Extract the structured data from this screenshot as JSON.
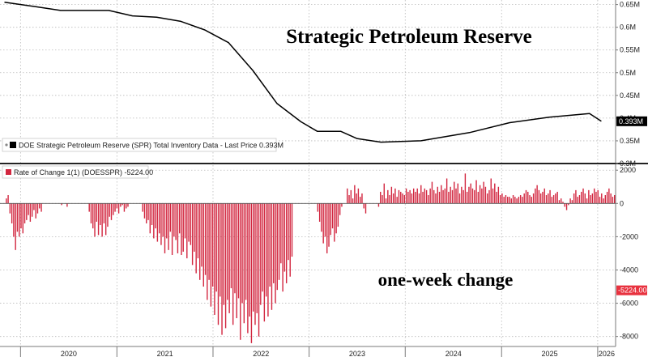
{
  "chart_data": [
    {
      "type": "line",
      "title": "Strategic Petroleum Reserve",
      "legend": "DOE Strategic Petroleum Reserve (SPR) Total Inventory Data - Last Price 0.393M",
      "last_value_label": "0.393M",
      "y_unit": "M",
      "ylim": [
        0.3,
        0.66
      ],
      "y_ticks": [
        0.3,
        0.35,
        0.4,
        0.45,
        0.5,
        0.55,
        0.6,
        0.65
      ],
      "y_tick_labels": [
        "0.3M",
        "0.35M",
        "0.4M",
        "0.45M",
        "0.5M",
        "0.55M",
        "0.6M",
        "0.65M"
      ],
      "grid": true,
      "line_color": "#000000",
      "x": [
        "2019-11-01",
        "2020-03-01",
        "2020-06-01",
        "2020-12-01",
        "2021-03-01",
        "2021-06-01",
        "2021-09-01",
        "2021-12-01",
        "2022-03-01",
        "2022-06-01",
        "2022-09-01",
        "2022-12-01",
        "2023-02-01",
        "2023-05-01",
        "2023-07-01",
        "2023-10-01",
        "2024-03-01",
        "2024-09-01",
        "2025-02-01",
        "2025-07-01",
        "2025-12-01",
        "2026-01-15"
      ],
      "y": [
        0.655,
        0.645,
        0.637,
        0.637,
        0.625,
        0.622,
        0.613,
        0.594,
        0.566,
        0.505,
        0.432,
        0.392,
        0.371,
        0.371,
        0.355,
        0.347,
        0.35,
        0.368,
        0.39,
        0.402,
        0.41,
        0.393
      ]
    },
    {
      "type": "bar",
      "title": "one-week change",
      "legend": "Rate of Change 1(1) (DOESSPR) -5224.00",
      "last_value_label": "-5224.00",
      "ylim": [
        -8600,
        2400
      ],
      "y_ticks": [
        2000,
        0,
        -2000,
        -4000,
        -6000,
        -8000
      ],
      "y_tick_labels": [
        "2000",
        "0",
        "-2000",
        "-4000",
        "-6000",
        "-8000"
      ],
      "grid": true,
      "bar_color": "#d2263f",
      "x_start": "2019-11-01",
      "frequency": "weekly",
      "values": [
        0,
        300,
        500,
        -600,
        -1200,
        -2000,
        -2800,
        -1700,
        -2000,
        -1500,
        -1800,
        -1200,
        -1000,
        -700,
        -1100,
        -800,
        -400,
        -900,
        -600,
        -300,
        -500,
        0,
        0,
        0,
        0,
        0,
        0,
        0,
        0,
        0,
        0,
        -100,
        0,
        0,
        -200,
        0,
        0,
        0,
        0,
        0,
        0,
        0,
        0,
        0,
        0,
        0,
        -500,
        -1200,
        -1500,
        -2000,
        -1100,
        -1900,
        -1300,
        -2000,
        -1200,
        -1900,
        -1400,
        -800,
        -1000,
        -700,
        -500,
        -300,
        -600,
        -200,
        -100,
        -500,
        -300,
        -200,
        0,
        0,
        0,
        0,
        0,
        0,
        0,
        -500,
        -900,
        -1200,
        -1000,
        -1800,
        -1300,
        -2100,
        -1500,
        -2300,
        -1800,
        -2500,
        -2000,
        -3000,
        -2100,
        -2800,
        -1700,
        -3100,
        -2000,
        -2200,
        -3000,
        -1800,
        -3100,
        -2900,
        -2100,
        -3300,
        -2300,
        -2500,
        -3700,
        -2900,
        -4200,
        -3300,
        -4600,
        -3800,
        -5000,
        -4300,
        -5800,
        -4600,
        -6200,
        -5000,
        -6700,
        -5300,
        -7300,
        -5600,
        -7900,
        -6100,
        -7500,
        -5800,
        -6600,
        -5100,
        -7300,
        -5400,
        -6900,
        -5700,
        -8200,
        -6000,
        -7200,
        -5800,
        -7800,
        -6800,
        -8400,
        -6500,
        -7300,
        -6600,
        -8000,
        -6100,
        -5300,
        -7100,
        -5600,
        -6800,
        -5000,
        -6400,
        -4800,
        -6000,
        -5200,
        -4600,
        -3600,
        -5300,
        -4100,
        -4800,
        -3400,
        -4400,
        -3200,
        0,
        0,
        0,
        0,
        0,
        0,
        0,
        0,
        0,
        0,
        0,
        0,
        0,
        -500,
        -1100,
        -1700,
        -2400,
        -2000,
        -3000,
        -2600,
        -1900,
        -1500,
        -2300,
        -1800,
        -1400,
        -700,
        -200,
        0,
        0,
        900,
        500,
        800,
        300,
        1100,
        600,
        900,
        400,
        600,
        -300,
        -600,
        0,
        0,
        0,
        0,
        0,
        0,
        -200,
        700,
        500,
        1200,
        300,
        800,
        500,
        1000,
        600,
        900,
        400,
        800,
        700,
        600,
        500,
        900,
        700,
        800,
        600,
        900,
        700,
        900,
        600,
        1100,
        700,
        900,
        800,
        500,
        900,
        1300,
        800,
        600,
        1000,
        700,
        1100,
        800,
        900,
        1500,
        700,
        1000,
        800,
        1300,
        900,
        1200,
        600,
        1000,
        800,
        1800,
        700,
        1000,
        1200,
        900,
        800,
        1400,
        700,
        1100,
        900,
        1300,
        1000,
        600,
        800,
        1500,
        900,
        1200,
        700,
        1000,
        500,
        600,
        400,
        500,
        400,
        400,
        300,
        500,
        400,
        300,
        400,
        500,
        400,
        600,
        800,
        700,
        500,
        400,
        600,
        900,
        1100,
        800,
        600,
        700,
        900,
        500,
        600,
        800,
        400,
        500,
        600,
        700,
        200,
        300,
        100,
        -200,
        -400,
        -100,
        300,
        200,
        600,
        800,
        400,
        500,
        700,
        900,
        600,
        300,
        800,
        500,
        600,
        900,
        700,
        800,
        400,
        600,
        300,
        500,
        700,
        900,
        600,
        400,
        500,
        700,
        800,
        600,
        400,
        300,
        200,
        0,
        0,
        0,
        0,
        -500,
        -1000,
        -2200,
        -4200,
        -3200,
        -2600,
        -4100,
        -4200,
        -5900,
        -7000,
        -5224
      ]
    }
  ],
  "x_axis": {
    "tick_labels": [
      "2020",
      "2021",
      "2022",
      "2023",
      "2024",
      "2025",
      "2026"
    ]
  },
  "colors": {
    "line": "#000000",
    "bar": "#d2263f",
    "price_tag_top_bg": "#000000",
    "price_tag_bottom_bg": "#e8323f",
    "grid": "#b9b9b9"
  }
}
